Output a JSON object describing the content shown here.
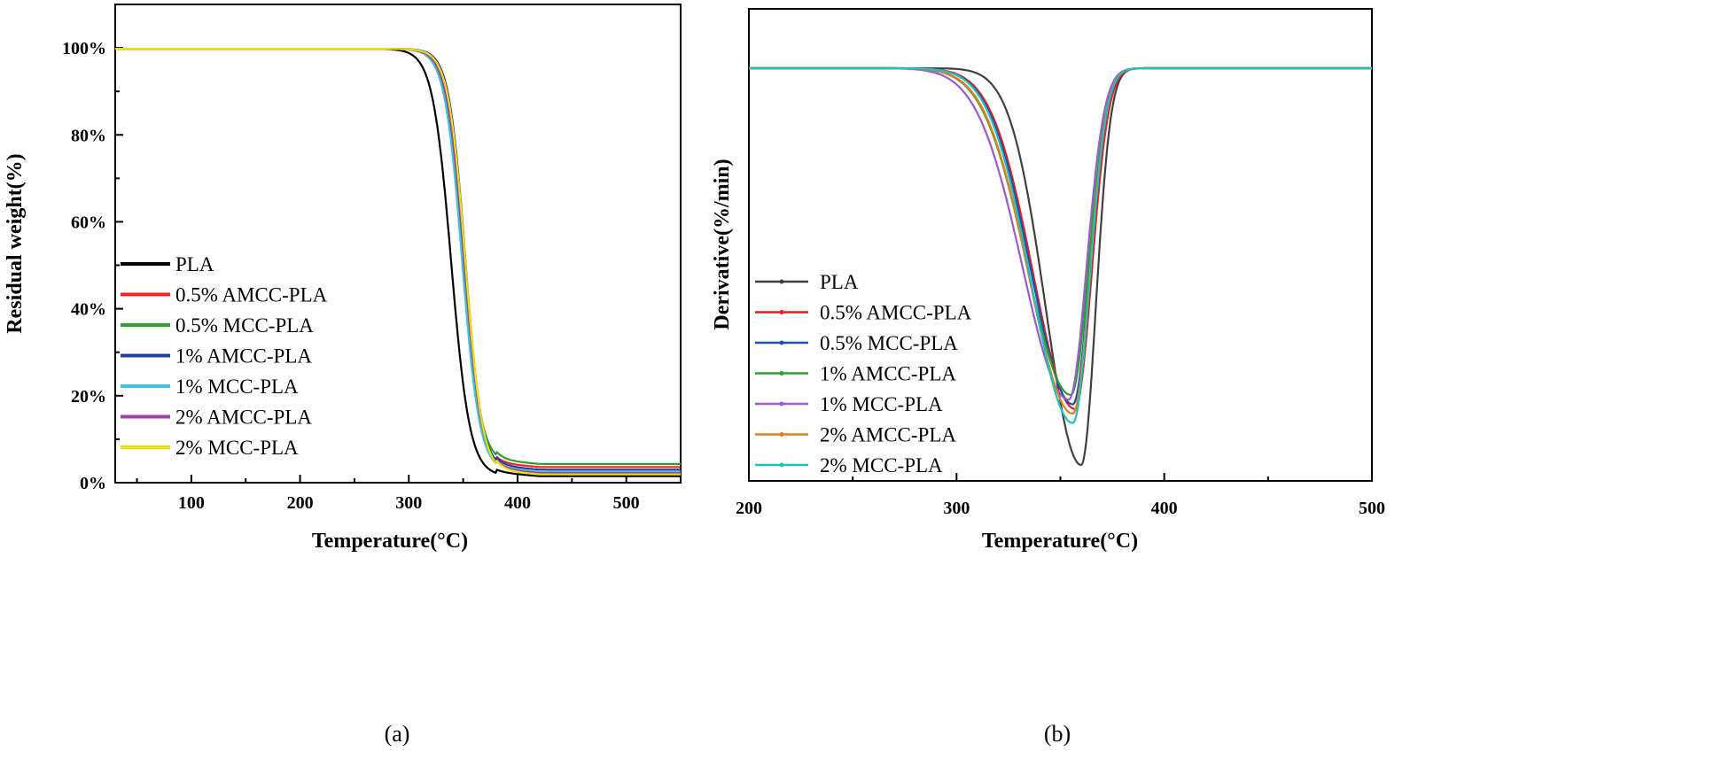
{
  "chart_data": [
    {
      "panel": "(a)",
      "type": "line",
      "title": "",
      "xlabel": "Temperature(°C)",
      "ylabel": "Residual weight(%)",
      "xlim": [
        30,
        550
      ],
      "ylim": [
        0,
        110
      ],
      "x_ticks": [
        100,
        200,
        300,
        400,
        500
      ],
      "x_tick_labels": [
        "100",
        "200",
        "300",
        "400",
        "500"
      ],
      "y_ticks": [
        0,
        20,
        40,
        60,
        80,
        100
      ],
      "y_tick_labels": [
        "0%",
        "20%",
        "40%",
        "60%",
        "80%",
        "100%"
      ],
      "legend_position": "middle-left",
      "series": [
        {
          "name": "PLA",
          "color": "#000000",
          "onset": 339,
          "width": 8.5,
          "final": 1.5
        },
        {
          "name": "0.5% AMCC-PLA",
          "color": "#ff2020",
          "onset": 350,
          "width": 7.5,
          "final": 3.6
        },
        {
          "name": "0.5% MCC-PLA",
          "color": "#2ca02c",
          "onset": 350,
          "width": 8.0,
          "final": 4.3
        },
        {
          "name": "1% AMCC-PLA",
          "color": "#1f3fa0",
          "onset": 352,
          "width": 7.5,
          "final": 3.0
        },
        {
          "name": "1% MCC-PLA",
          "color": "#40bfe0",
          "onset": 349,
          "width": 8.0,
          "final": 2.5
        },
        {
          "name": "2% AMCC-PLA",
          "color": "#a040a0",
          "onset": 351,
          "width": 8.0,
          "final": 2.2
        },
        {
          "name": "2% MCC-PLA",
          "color": "#f0e000",
          "onset": 352,
          "width": 7.8,
          "final": 1.9
        }
      ]
    },
    {
      "panel": "(b)",
      "type": "line",
      "title": "",
      "xlabel": "Temperature(°C)",
      "ylabel": "Derivative(%/min)",
      "xlim": [
        200,
        500
      ],
      "ylim": [
        0,
        1
      ],
      "x_ticks": [
        200,
        300,
        400,
        500
      ],
      "x_tick_labels": [
        "200",
        "300",
        "400",
        "500"
      ],
      "legend_position": "bottom-left",
      "series": [
        {
          "name": "PLA",
          "color": "#404040",
          "peak_x": 360,
          "depth": 0.85,
          "left_sigma": 17,
          "right_sigma": 7
        },
        {
          "name": "0.5% AMCC-PLA",
          "color": "#e02020",
          "peak_x": 357,
          "depth": 0.73,
          "left_sigma": 20,
          "right_sigma": 8
        },
        {
          "name": "0.5% MCC-PLA",
          "color": "#1f4fb0",
          "peak_x": 356,
          "depth": 0.72,
          "left_sigma": 20,
          "right_sigma": 8
        },
        {
          "name": "1% AMCC-PLA",
          "color": "#2ca02c",
          "peak_x": 355,
          "depth": 0.7,
          "left_sigma": 21,
          "right_sigma": 8.5
        },
        {
          "name": "1% MCC-PLA",
          "color": "#9b59d0",
          "peak_x": 354,
          "depth": 0.71,
          "left_sigma": 22,
          "right_sigma": 8.5
        },
        {
          "name": "2% AMCC-PLA",
          "color": "#e08020",
          "peak_x": 356,
          "depth": 0.74,
          "left_sigma": 21,
          "right_sigma": 8
        },
        {
          "name": "2% MCC-PLA",
          "color": "#20c0c0",
          "peak_x": 356,
          "depth": 0.76,
          "left_sigma": 20,
          "right_sigma": 8
        }
      ]
    }
  ],
  "captions": {
    "left": "(a)",
    "right": "(b)"
  }
}
